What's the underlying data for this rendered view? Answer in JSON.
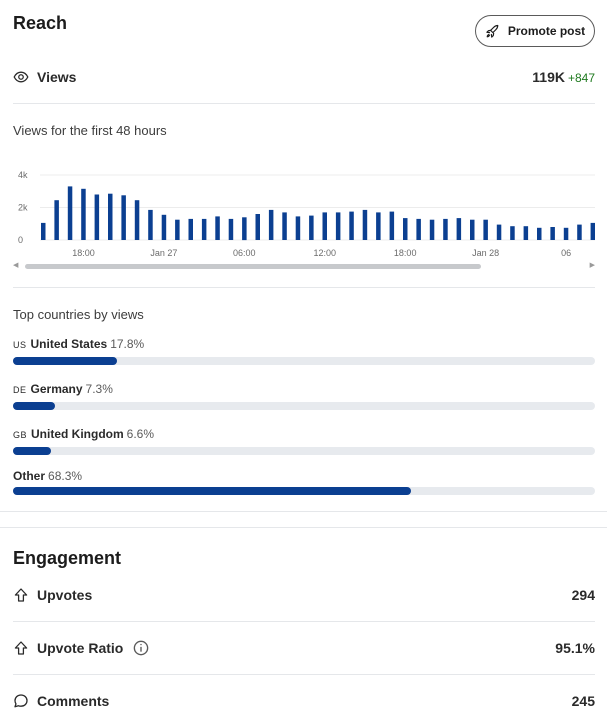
{
  "reach": {
    "title": "Reach",
    "promote_label": "Promote post",
    "views_label": "Views",
    "views_value": "119K",
    "views_delta": "+847",
    "chart_subtitle": "Views for the first 48 hours"
  },
  "chart_data": {
    "type": "bar",
    "title": "Views for the first 48 hours",
    "y_ticks": [
      "4k",
      "2k",
      "0"
    ],
    "ylim": [
      0,
      4000
    ],
    "x_tick_labels": [
      "18:00",
      "Jan 27",
      "06:00",
      "12:00",
      "18:00",
      "Jan 28",
      "06"
    ],
    "bar_color": "#0b3f91",
    "values": [
      1050,
      2450,
      3300,
      3150,
      2800,
      2850,
      2750,
      2450,
      1850,
      1550,
      1250,
      1300,
      1300,
      1450,
      1300,
      1400,
      1600,
      1850,
      1700,
      1450,
      1500,
      1700,
      1700,
      1750,
      1850,
      1700,
      1750,
      1350,
      1300,
      1250,
      1300,
      1350,
      1250,
      1250,
      950,
      850,
      850,
      750,
      800,
      750,
      950,
      1050
    ]
  },
  "countries": {
    "title": "Top countries by views",
    "bar_color": "#0b3f91",
    "items": [
      {
        "code": "US",
        "name": "United States",
        "pct": "17.8%",
        "fraction": 0.178
      },
      {
        "code": "DE",
        "name": "Germany",
        "pct": "7.3%",
        "fraction": 0.073
      },
      {
        "code": "GB",
        "name": "United Kingdom",
        "pct": "6.6%",
        "fraction": 0.066
      },
      {
        "code": "",
        "name": "Other",
        "pct": "68.3%",
        "fraction": 0.683
      }
    ]
  },
  "engagement": {
    "title": "Engagement",
    "upvotes_label": "Upvotes",
    "upvotes_value": "294",
    "ratio_label": "Upvote Ratio",
    "ratio_value": "95.1%",
    "comments_label": "Comments",
    "comments_value": "245"
  },
  "icons": {
    "promote": "rocket-icon",
    "views": "eye-icon",
    "upvotes": "upvote-arrow-icon",
    "ratio": "upvote-arrow-icon",
    "info": "info-icon",
    "comments": "comment-bubble-icon"
  }
}
